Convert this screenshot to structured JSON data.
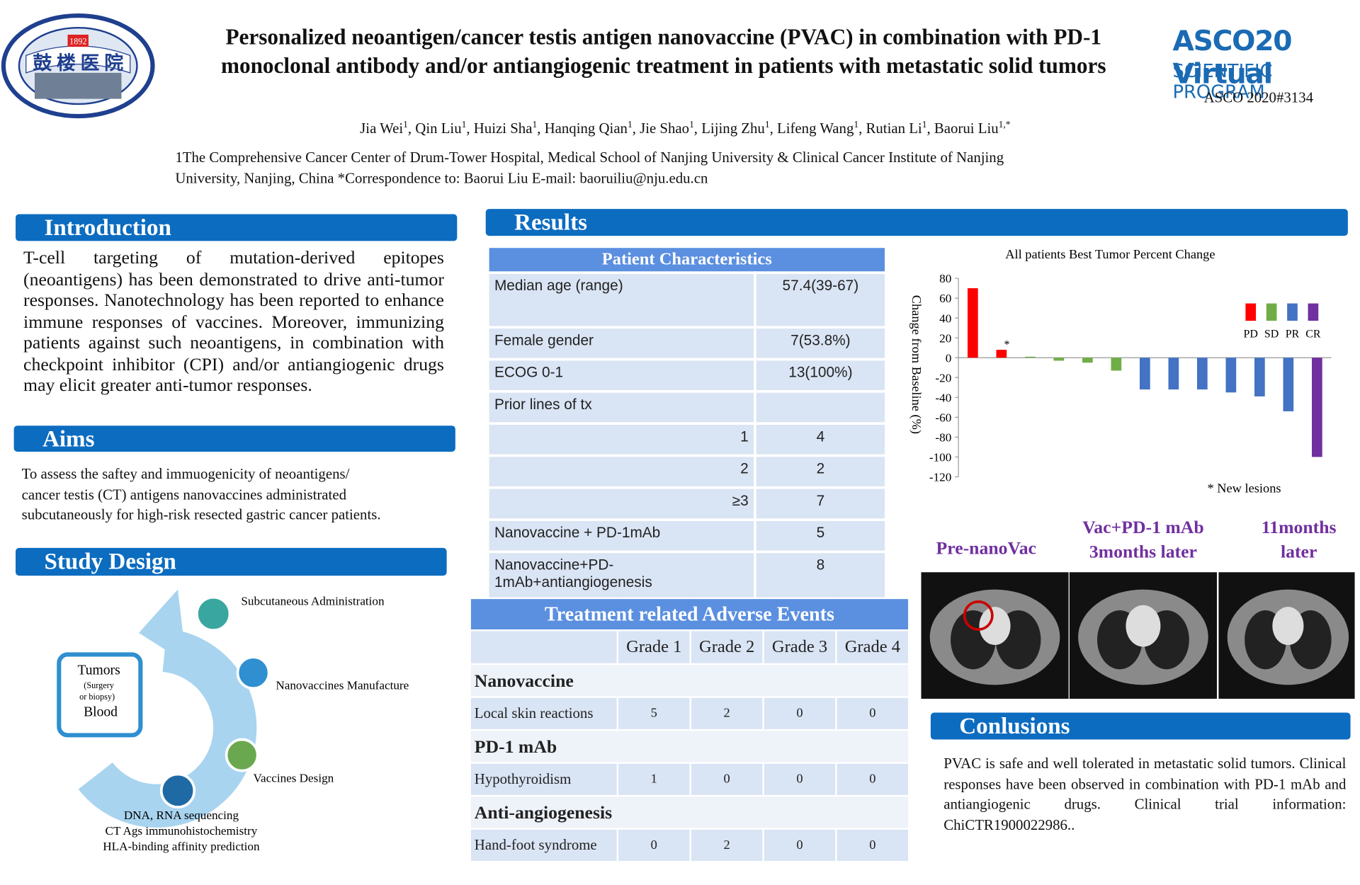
{
  "header": {
    "title_lines": [
      "Personalized neoantigen/cancer testis antigen nanovaccine (PVAC) in combination with PD-1",
      "monoclonal antibody and/or antiangiogenic treatment in patients with metastatic solid tumors"
    ],
    "logo_text": "鼓 楼 医 院",
    "logo_year": "1892",
    "asco_logo": "ASCO20 Virtual",
    "asco_program": "SCIENTIFIC PROGRAM",
    "abstract_id": "ASCO 2020#3134",
    "authors": [
      {
        "name": "Jia Wei",
        "sup": "1"
      },
      {
        "name": "Qin Liu",
        "sup": "1"
      },
      {
        "name": "Huizi Sha",
        "sup": "1"
      },
      {
        "name": "Hanqing Qian",
        "sup": "1"
      },
      {
        "name": "Jie Shao",
        "sup": "1"
      },
      {
        "name": "Lijing Zhu",
        "sup": "1"
      },
      {
        "name": "Lifeng Wang",
        "sup": "1"
      },
      {
        "name": "Rutian Li",
        "sup": "1"
      },
      {
        "name": "Baorui Liu",
        "sup": "1,*"
      }
    ],
    "author_separator": ", ",
    "affiliation_lines": [
      "1The Comprehensive Cancer Center of Drum-Tower Hospital, Medical School of Nanjing University & Clinical Cancer Institute of Nanjing",
      "University, Nanjing, China  *Correspondence to:  Baorui Liu E-mail: baoruiliu@nju.edu.cn"
    ]
  },
  "introduction": {
    "heading": "Introduction",
    "text": "T-cell targeting of mutation-derived epitopes (neoantigens) has been demonstrated to drive anti-tumor responses. Nanotechnology has been reported to enhance immune responses of vaccines. Moreover, immunizing patients against such neoantigens, in combination with checkpoint inhibitor (CPI) and/or antiangiogenic drugs may elicit greater anti-tumor responses."
  },
  "aims": {
    "heading": "Aims",
    "lines": [
      "To assess the saftey and immuogenicity  of  neoantigens/",
      "cancer testis (CT) antigens nanovaccines administrated",
      "subcutaneously for high-risk resected gastric cancer patients."
    ]
  },
  "study_design": {
    "heading": "Study Design",
    "center": [
      "Tumors",
      "(Surgery",
      "or biopsy)",
      "Blood"
    ],
    "steps": [
      "Subcutaneous Administration",
      "Nanovaccines Manufacture",
      "Vaccines Design"
    ],
    "bottom_lines": [
      "DNA, RNA sequencing",
      "CT Ags immunohistochemistry",
      "HLA-binding affinity prediction"
    ]
  },
  "results": {
    "heading": "Results"
  },
  "patient_table": {
    "title": "Patient Characteristics",
    "rows": [
      [
        "Median age (range)",
        "57.4(39-67)"
      ],
      [
        "Female gender",
        "7(53.8%)"
      ],
      [
        "ECOG 0-1",
        "13(100%)"
      ],
      [
        "Prior lines of tx"
      ],
      [
        "1",
        "4"
      ],
      [
        "2",
        "2"
      ],
      [
        "≥3",
        "7"
      ],
      [
        "Nanovaccine + PD-1mAb",
        "5"
      ],
      [
        "Nanovaccine+PD-1mAb+antiangiogenesis",
        "8"
      ]
    ]
  },
  "ae_table": {
    "title": "Treatment related  Adverse Events",
    "columns": [
      "Grade 1",
      "Grade 2",
      "Grade 3",
      "Grade 4"
    ],
    "sections": [
      {
        "name": "Nanovaccine",
        "rows": [
          [
            "Local skin reactions",
            "5",
            "2",
            "0",
            "0"
          ]
        ]
      },
      {
        "name": "PD-1 mAb",
        "rows": [
          [
            "Hypothyroidism",
            "1",
            "0",
            "0",
            "0"
          ]
        ]
      },
      {
        "name": "Anti-angiogenesis",
        "rows": [
          [
            "Hand-foot syndrome",
            "0",
            "2",
            "0",
            "0"
          ]
        ]
      }
    ]
  },
  "chart_data": {
    "type": "bar",
    "title": "All patients  Best Tumor Percent Change",
    "y_label": "Change  from  Baseline (%)",
    "categories": [
      null,
      null,
      null,
      null,
      null,
      null,
      null,
      null,
      null,
      null,
      null,
      null,
      null
    ],
    "series": [
      {
        "name": "PD",
        "color": "#ff0000",
        "values": [
          70,
          8,
          null,
          null,
          null,
          null,
          null,
          null,
          null,
          null,
          null,
          null,
          null
        ]
      },
      {
        "name": "SD",
        "color": "#70ad47",
        "values": [
          null,
          null,
          1,
          -3,
          -5,
          -13,
          null,
          null,
          null,
          null,
          null,
          null,
          null
        ]
      },
      {
        "name": "PR",
        "color": "#4472c4",
        "values": [
          null,
          null,
          null,
          null,
          null,
          null,
          -32,
          -32,
          -32,
          -35,
          -39,
          -54,
          null
        ]
      },
      {
        "name": "CR",
        "color": "#7030a0",
        "values": [
          null,
          null,
          null,
          null,
          null,
          null,
          null,
          null,
          null,
          null,
          null,
          null,
          -100
        ]
      }
    ],
    "ylim": [
      -120,
      80
    ],
    "yticks": [
      -120,
      -100,
      -80,
      -60,
      -40,
      -20,
      0,
      20,
      40,
      60,
      80
    ],
    "legend": "top-right",
    "annotation": "*",
    "footnote": "*  New lesions"
  },
  "imaging": {
    "labels": [
      [
        "Pre-nanoVac"
      ],
      [
        "Vac+PD-1 mAb",
        "3months later"
      ],
      [
        "11months",
        "later"
      ]
    ]
  },
  "conclusions": {
    "heading": "Conlusions",
    "text": "PVAC is safe and well tolerated in metastatic solid tumors. Clinical responses have been observed in combination with PD-1 mAb and antiangiogenic drugs. Clinical trial information: ChiCTR1900022986.."
  }
}
